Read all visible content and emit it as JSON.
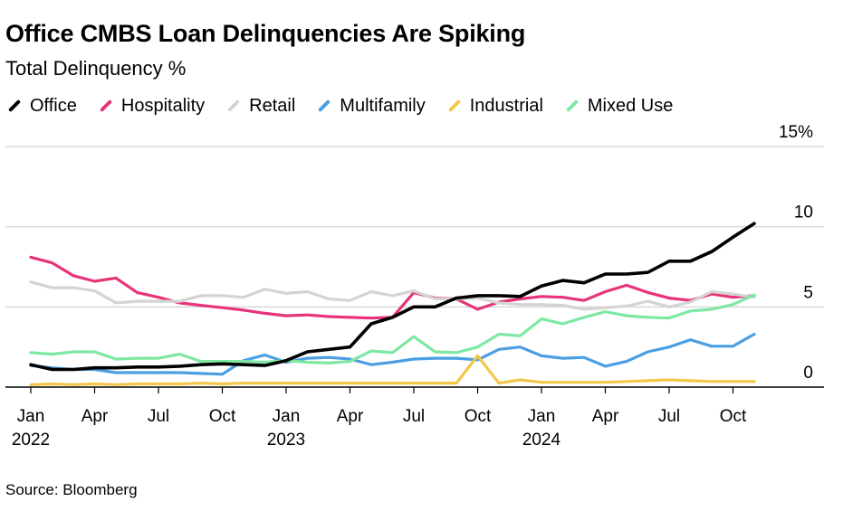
{
  "title": "Office CMBS Loan Delinquencies Are Spiking",
  "subtitle": "Total Delinquency %",
  "source": "Source: Bloomberg",
  "chart_data": {
    "type": "line",
    "title": "Office CMBS Loan Delinquencies Are Spiking",
    "subtitle": "Total Delinquency %",
    "ylim": [
      0,
      15
    ],
    "y_ticks": [
      "15%",
      "10",
      "5",
      "0"
    ],
    "y_tick_values": [
      15,
      10,
      5,
      0
    ],
    "x_tick_labels": [
      [
        "Jan",
        "2022"
      ],
      [
        "Apr",
        ""
      ],
      [
        "Jul",
        ""
      ],
      [
        "Oct",
        ""
      ],
      [
        "Jan",
        "2023"
      ],
      [
        "Apr",
        ""
      ],
      [
        "Jul",
        ""
      ],
      [
        "Oct",
        ""
      ],
      [
        "Jan",
        "2024"
      ],
      [
        "Apr",
        ""
      ],
      [
        "Jul",
        ""
      ],
      [
        "Oct",
        ""
      ]
    ],
    "x_tick_positions": [
      0,
      3,
      6,
      9,
      12,
      15,
      18,
      21,
      24,
      27,
      30,
      33
    ],
    "x": [
      "2022-01",
      "2022-02",
      "2022-03",
      "2022-04",
      "2022-05",
      "2022-06",
      "2022-07",
      "2022-08",
      "2022-09",
      "2022-10",
      "2022-11",
      "2022-12",
      "2023-01",
      "2023-02",
      "2023-03",
      "2023-04",
      "2023-05",
      "2023-06",
      "2023-07",
      "2023-08",
      "2023-09",
      "2023-10",
      "2023-11",
      "2023-12",
      "2024-01",
      "2024-02",
      "2024-03",
      "2024-04",
      "2024-05",
      "2024-06",
      "2024-07",
      "2024-08",
      "2024-09",
      "2024-10",
      "2024-11"
    ],
    "grid": true,
    "y_axis_position": "right",
    "legend_position": "top-left",
    "series": [
      {
        "name": "Office",
        "color": "#000000",
        "values": [
          1.4,
          1.1,
          1.1,
          1.2,
          1.2,
          1.25,
          1.25,
          1.3,
          1.4,
          1.45,
          1.4,
          1.35,
          1.65,
          2.2,
          2.35,
          2.5,
          3.95,
          4.35,
          5.0,
          5.0,
          5.55,
          5.7,
          5.7,
          5.65,
          6.3,
          6.65,
          6.5,
          7.05,
          7.05,
          7.15,
          7.85,
          7.85,
          8.45,
          9.35,
          10.2
        ]
      },
      {
        "name": "Hospitality",
        "color": "#e7337a",
        "values": [
          8.1,
          7.75,
          6.95,
          6.6,
          6.8,
          5.9,
          5.6,
          5.25,
          5.1,
          4.95,
          4.8,
          4.6,
          4.45,
          4.5,
          4.4,
          4.35,
          4.3,
          4.35,
          5.9,
          5.55,
          5.5,
          4.85,
          5.3,
          5.5,
          5.65,
          5.6,
          5.4,
          5.95,
          6.35,
          5.9,
          5.55,
          5.4,
          5.8,
          5.6,
          5.7
        ]
      },
      {
        "name": "Retail",
        "color": "#d4d4d4",
        "values": [
          6.55,
          6.2,
          6.2,
          6.0,
          5.25,
          5.35,
          5.35,
          5.35,
          5.7,
          5.7,
          5.6,
          6.1,
          5.85,
          5.95,
          5.5,
          5.4,
          5.95,
          5.7,
          6.0,
          5.5,
          5.5,
          5.55,
          5.25,
          5.15,
          5.15,
          5.1,
          4.85,
          4.95,
          5.05,
          5.35,
          5.0,
          5.3,
          5.95,
          5.8,
          5.6
        ]
      },
      {
        "name": "Multifamily",
        "color": "#4a9fe3",
        "values": [
          1.35,
          1.2,
          1.1,
          1.1,
          0.9,
          0.9,
          0.9,
          0.9,
          0.85,
          0.8,
          1.65,
          2.0,
          1.55,
          1.8,
          1.85,
          1.75,
          1.4,
          1.55,
          1.75,
          1.8,
          1.8,
          1.7,
          2.35,
          2.5,
          1.95,
          1.8,
          1.85,
          1.3,
          1.6,
          2.2,
          2.5,
          2.95,
          2.55,
          2.55,
          3.3
        ]
      },
      {
        "name": "Industrial",
        "color": "#f2c84b",
        "values": [
          0.15,
          0.2,
          0.15,
          0.2,
          0.15,
          0.2,
          0.2,
          0.2,
          0.25,
          0.2,
          0.25,
          0.25,
          0.25,
          0.25,
          0.25,
          0.25,
          0.25,
          0.25,
          0.25,
          0.25,
          0.25,
          1.95,
          0.25,
          0.45,
          0.3,
          0.3,
          0.3,
          0.3,
          0.35,
          0.4,
          0.45,
          0.4,
          0.35,
          0.35,
          0.35
        ]
      },
      {
        "name": "Mixed Use",
        "color": "#7ee8a2",
        "values": [
          2.15,
          2.05,
          2.2,
          2.2,
          1.75,
          1.8,
          1.8,
          2.05,
          1.6,
          1.6,
          1.6,
          1.55,
          1.65,
          1.55,
          1.5,
          1.6,
          2.25,
          2.15,
          3.15,
          2.2,
          2.15,
          2.5,
          3.3,
          3.2,
          4.25,
          3.95,
          4.35,
          4.7,
          4.45,
          4.35,
          4.3,
          4.75,
          4.85,
          5.15,
          5.75
        ]
      }
    ]
  }
}
